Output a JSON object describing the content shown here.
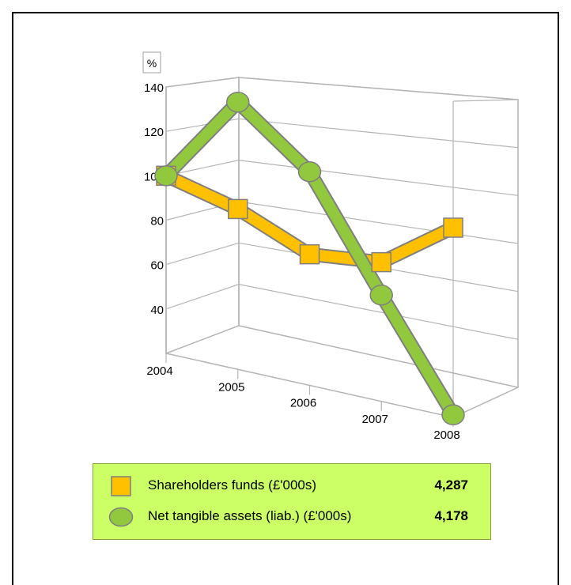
{
  "chart_data": {
    "type": "line",
    "ylabel": "%",
    "x": [
      "2004",
      "2005",
      "2006",
      "2007",
      "2008"
    ],
    "y_ticks": [
      "40",
      "60",
      "80",
      "100",
      "120",
      "140"
    ],
    "ylim": [
      20,
      140
    ],
    "grid": true,
    "legend_position": "bottom",
    "series": [
      {
        "name": "Shareholders funds (£'000s)",
        "values": [
          100,
          89,
          74,
          75,
          92
        ],
        "color": "#ffc000",
        "marker": "square",
        "legend_value": "4,287"
      },
      {
        "name": "Net tangible assets (liab.) (£'000s)",
        "values": [
          100,
          135,
          108,
          62,
          21
        ],
        "color": "#92c83e",
        "marker": "circle",
        "legend_value": "4,178"
      }
    ]
  }
}
